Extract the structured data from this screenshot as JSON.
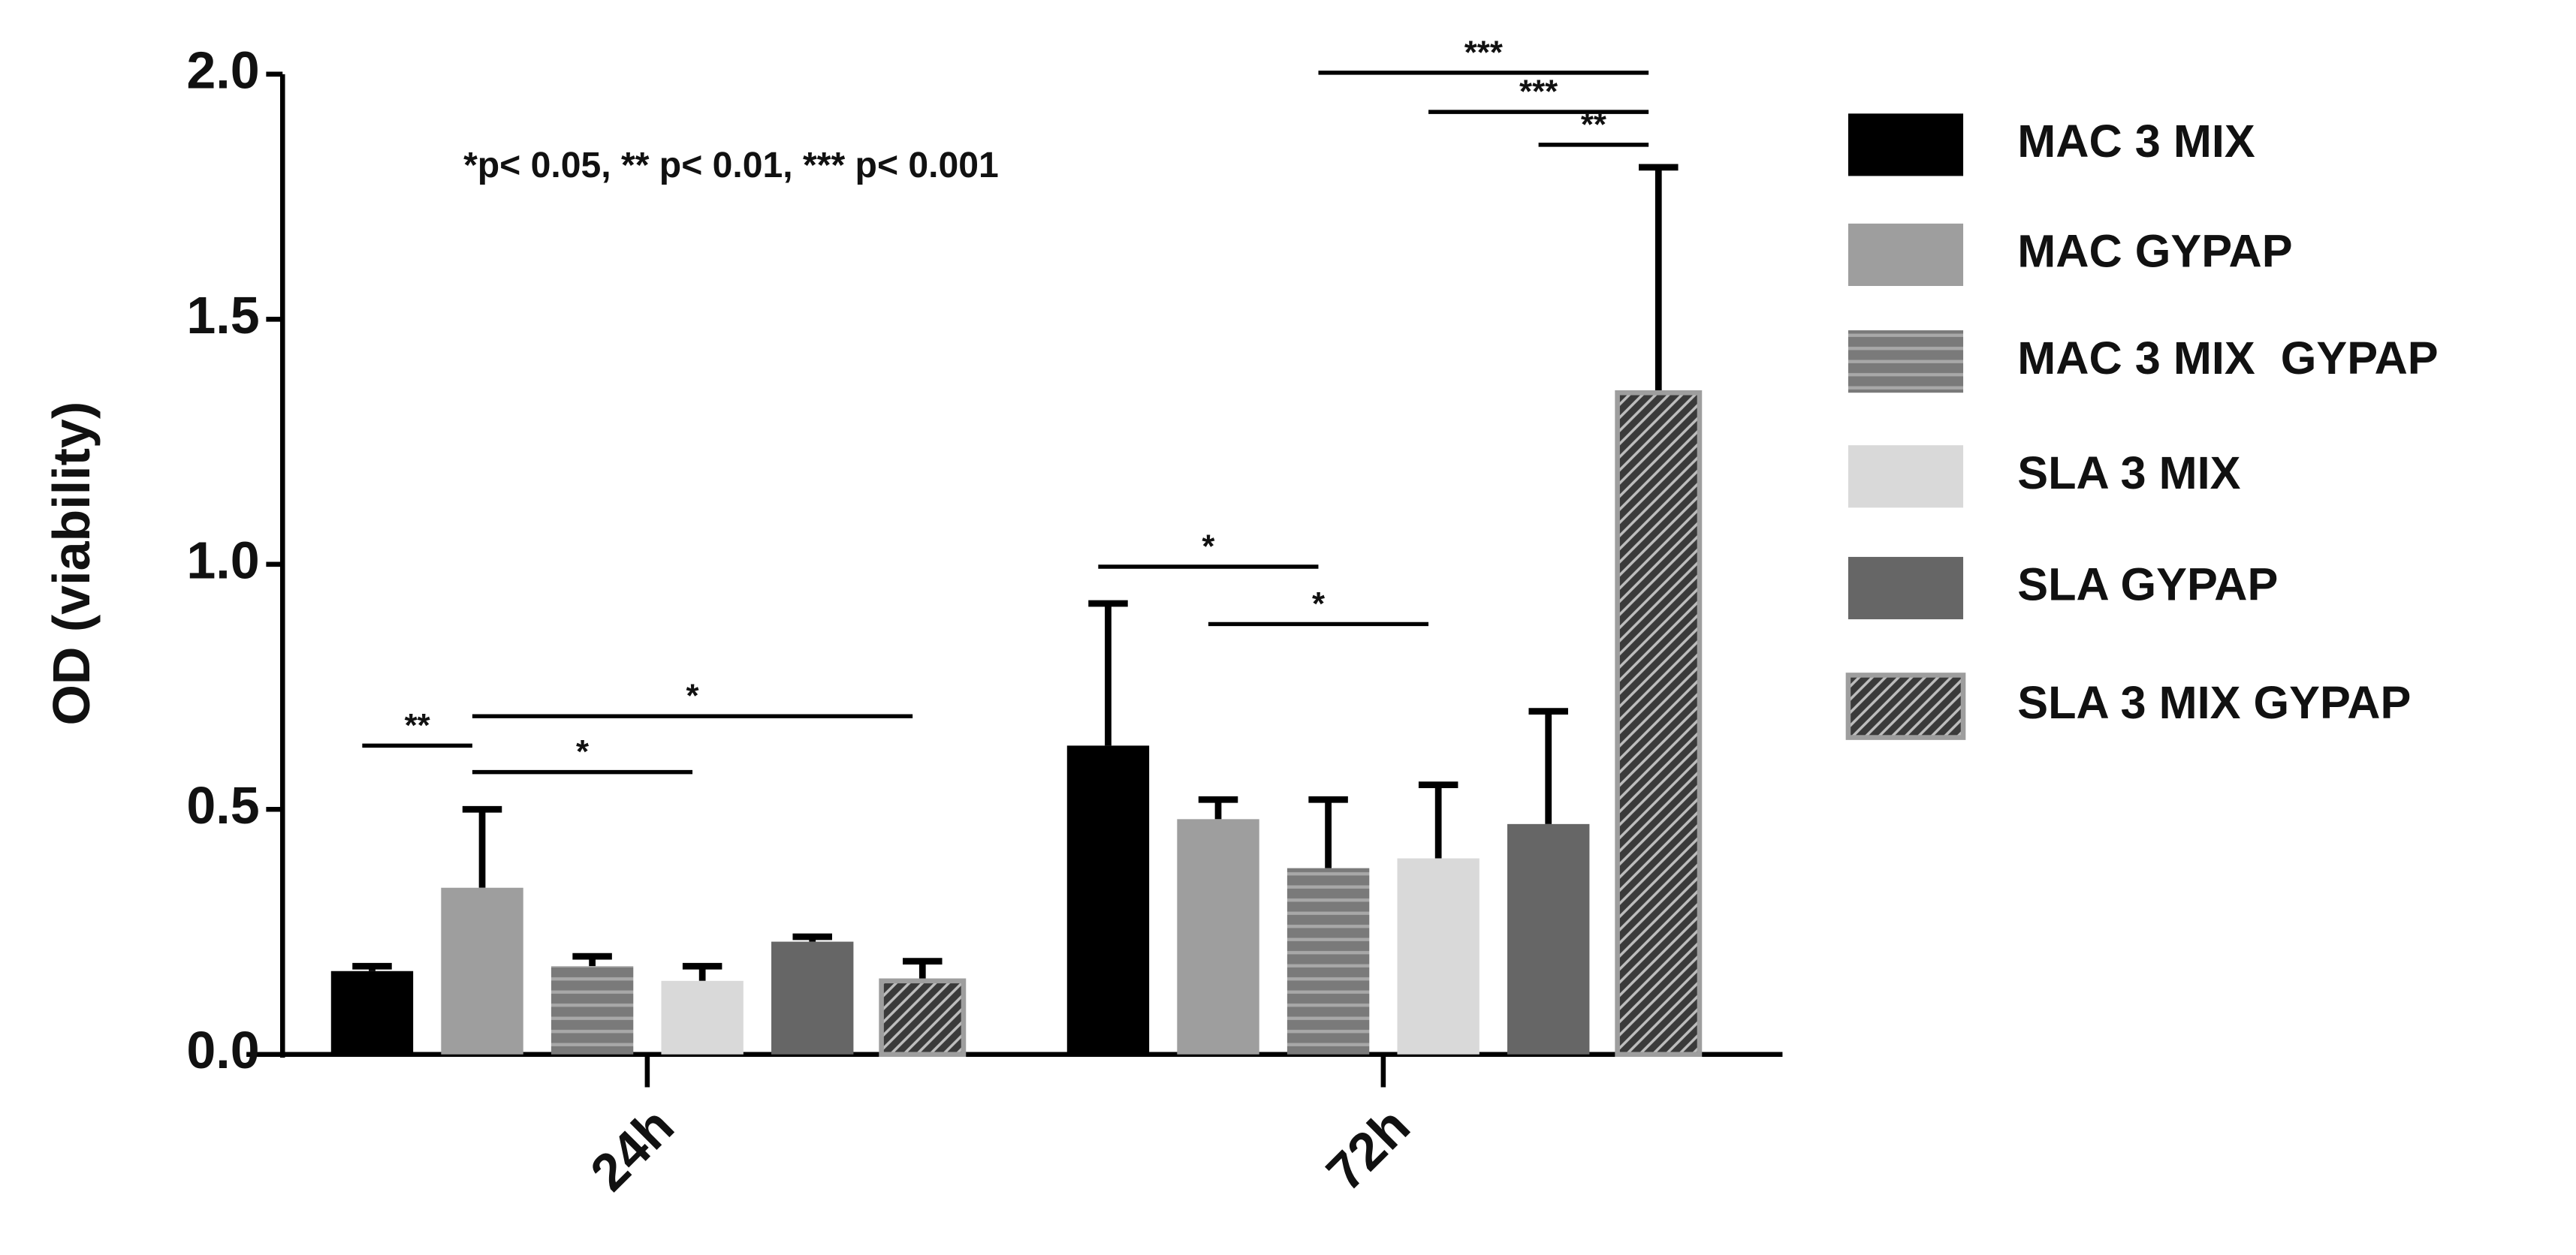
{
  "chart_data": {
    "type": "bar",
    "y_label": "OD (viability)",
    "note": "*p< 0.05, ** p< 0.01, *** p< 0.001",
    "categories": [
      "24h",
      "72h"
    ],
    "ylim": [
      0,
      2
    ],
    "yticks": [
      {
        "value": 0,
        "label": "0.0"
      },
      {
        "value": 0.5,
        "label": "0.5"
      },
      {
        "value": 1,
        "label": "1.0"
      },
      {
        "value": 1.5,
        "label": "1.5"
      },
      {
        "value": 2,
        "label": "2.0"
      }
    ],
    "error_color": "#000000",
    "series": [
      {
        "name": "MAC 3 MIX",
        "color": "#000000",
        "values": [
          0.17,
          0.63
        ],
        "errors": [
          0.01,
          0.29
        ]
      },
      {
        "name": "MAC GYPAP",
        "color": "#9e9e9e",
        "values": [
          0.34,
          0.48
        ],
        "errors": [
          0.16,
          0.04
        ]
      },
      {
        "name": "MAC 3 MIX  GYPAP",
        "color": "#7a7a7a",
        "pattern": "horizontal",
        "values": [
          0.18,
          0.38
        ],
        "errors": [
          0.02,
          0.14
        ]
      },
      {
        "name": "SLA 3 MIX",
        "color": "#d9d9d9",
        "values": [
          0.15,
          0.4
        ],
        "errors": [
          0.03,
          0.15
        ]
      },
      {
        "name": "SLA GYPAP",
        "color": "#666666",
        "values": [
          0.23,
          0.47
        ],
        "errors": [
          0.01,
          0.23
        ]
      },
      {
        "name": "SLA 3 MIX GYPAP",
        "color": "#3a3a3a",
        "pattern": "diagonal",
        "values": [
          0.15,
          1.35
        ],
        "errors": [
          0.04,
          0.46
        ]
      }
    ],
    "comparisons": [
      {
        "label": "**",
        "category": 0,
        "series": [
          0,
          1
        ],
        "y": 0.63
      },
      {
        "label": "*",
        "category": 0,
        "series": [
          1,
          3
        ],
        "y": 0.576
      },
      {
        "label": "*",
        "category": 0,
        "series": [
          1,
          5
        ],
        "y": 0.69
      },
      {
        "label": "*",
        "category": 1,
        "series": [
          0,
          2
        ],
        "y": 0.995
      },
      {
        "label": "*",
        "category": 1,
        "series": [
          1,
          3
        ],
        "y": 0.878
      },
      {
        "label": "***",
        "category": 1,
        "series": [
          2,
          5
        ],
        "y": 2.003
      },
      {
        "label": "***",
        "category": 1,
        "series": [
          3,
          5
        ],
        "y": 1.923
      },
      {
        "label": "**",
        "category": 1,
        "series": [
          4,
          5
        ],
        "y": 1.856
      }
    ]
  }
}
